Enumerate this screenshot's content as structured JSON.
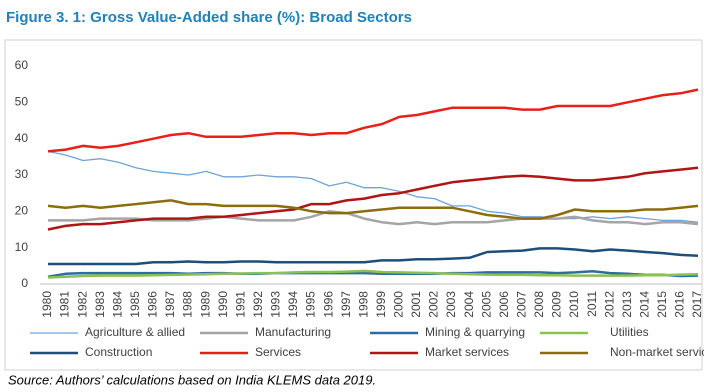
{
  "chart_data": {
    "type": "line",
    "title": "Figure 3. 1: Gross Value-Added share (%): Broad Sectors",
    "source": "Source: Authors’ calculations based on India KLEMS data 2019.",
    "categories": [
      "1980",
      "1981",
      "1982",
      "1983",
      "1984",
      "1985",
      "1986",
      "1987",
      "1988",
      "1989",
      "1990",
      "1991",
      "1992",
      "1993",
      "1994",
      "1995",
      "1996",
      "1997",
      "1998",
      "1999",
      "2000",
      "2001",
      "2002",
      "2003",
      "2004",
      "2005",
      "2006",
      "2007",
      "2008",
      "2009",
      "2010",
      "2011",
      "2012",
      "2013",
      "2014",
      "2015",
      "2016",
      "2017"
    ],
    "ylim": [
      0,
      60
    ],
    "yticks": [
      0,
      10,
      20,
      30,
      40,
      50,
      60
    ],
    "grid": false,
    "series": [
      {
        "name": "Agriculture & allied",
        "color": "#6FA3D6",
        "width": 1.3,
        "values": [
          36.5,
          35.5,
          34,
          34.5,
          33.5,
          32,
          31,
          30.5,
          30,
          31,
          29.5,
          29.5,
          30,
          29.5,
          29.5,
          29,
          27,
          28,
          26.5,
          26.5,
          25.5,
          24,
          23.5,
          21.5,
          21.5,
          20,
          19.5,
          18.5,
          18.5,
          18,
          18,
          18.5,
          18,
          18.5,
          18,
          17.5,
          17.5,
          17
        ]
      },
      {
        "name": "Manufacturing",
        "color": "#A5A5A5",
        "width": 2.5,
        "values": [
          17.5,
          17.5,
          17.5,
          18,
          18,
          18,
          17.5,
          17.5,
          17.5,
          18,
          18.5,
          18,
          17.5,
          17.5,
          17.5,
          18.5,
          20,
          19.5,
          18,
          17,
          16.5,
          17,
          16.5,
          17,
          17,
          17,
          17.5,
          18,
          18,
          18,
          18.5,
          17.5,
          17,
          17,
          16.5,
          17,
          17,
          16.5
        ]
      },
      {
        "name": "Mining & quarrying",
        "color": "#2E6DA4",
        "width": 2.5,
        "values": [
          2,
          2.8,
          3,
          3,
          3,
          3,
          3,
          3,
          2.8,
          3,
          3,
          2.8,
          2.8,
          3,
          3,
          3,
          3,
          3,
          3,
          2.8,
          2.8,
          2.8,
          2.8,
          3,
          3,
          3.2,
          3.2,
          3.2,
          3.2,
          3,
          3.2,
          3.5,
          3,
          2.8,
          2.5,
          2.5,
          2.2,
          2.3
        ]
      },
      {
        "name": "Utilities",
        "color": "#8CC152",
        "width": 2.5,
        "values": [
          1.8,
          2,
          2.2,
          2.3,
          2.3,
          2.3,
          2.4,
          2.5,
          2.6,
          2.7,
          2.8,
          2.9,
          3,
          3,
          3.2,
          3.3,
          3.3,
          3.4,
          3.6,
          3.3,
          3.2,
          3.1,
          3,
          2.8,
          2.7,
          2.6,
          2.5,
          2.5,
          2.4,
          2.4,
          2.3,
          2.3,
          2.3,
          2.3,
          2.4,
          2.4,
          2.6,
          2.7
        ]
      },
      {
        "name": "Construction",
        "color": "#1F4E79",
        "width": 2.5,
        "values": [
          5.5,
          5.5,
          5.5,
          5.5,
          5.5,
          5.5,
          6,
          6,
          6.2,
          6,
          6,
          6.2,
          6.2,
          6,
          6,
          6,
          6,
          6,
          6,
          6.5,
          6.5,
          6.8,
          6.8,
          7,
          7.2,
          8.8,
          9,
          9.2,
          9.8,
          9.8,
          9.5,
          9,
          9.5,
          9.2,
          8.8,
          8.5,
          8,
          7.8
        ]
      },
      {
        "name": "Services",
        "color": "#E8201A",
        "width": 2.5,
        "values": [
          36.5,
          37,
          38,
          37.5,
          38,
          39,
          40,
          41,
          41.5,
          40.5,
          40.5,
          40.5,
          41,
          41.5,
          41.5,
          41,
          41.5,
          41.5,
          43,
          44,
          46,
          46.5,
          47.5,
          48.5,
          48.5,
          48.5,
          48.5,
          48,
          48,
          49,
          49,
          49,
          49,
          50,
          51,
          52,
          52.5,
          53.5
        ]
      },
      {
        "name": "Market services",
        "color": "#B01515",
        "width": 2.5,
        "values": [
          15,
          16,
          16.5,
          16.5,
          17,
          17.5,
          18,
          18,
          18,
          18.5,
          18.5,
          19,
          19.5,
          20,
          20.5,
          22,
          22,
          23,
          23.5,
          24.5,
          25,
          26,
          27,
          28,
          28.5,
          29,
          29.5,
          29.8,
          29.5,
          29,
          28.5,
          28.5,
          29,
          29.5,
          30.5,
          31,
          31.5,
          32
        ]
      },
      {
        "name": "Non-market services",
        "color": "#8C6D0E",
        "width": 2.5,
        "values": [
          21.5,
          21,
          21.5,
          21,
          21.5,
          22,
          22.5,
          23,
          22,
          22,
          21.5,
          21.5,
          21.5,
          21.5,
          21,
          20,
          19.5,
          19.5,
          20,
          20.5,
          21,
          21,
          21,
          21,
          20,
          19,
          18.5,
          18,
          18,
          19,
          20.5,
          20,
          20,
          20,
          20.5,
          20.5,
          21,
          21.5
        ]
      }
    ]
  }
}
